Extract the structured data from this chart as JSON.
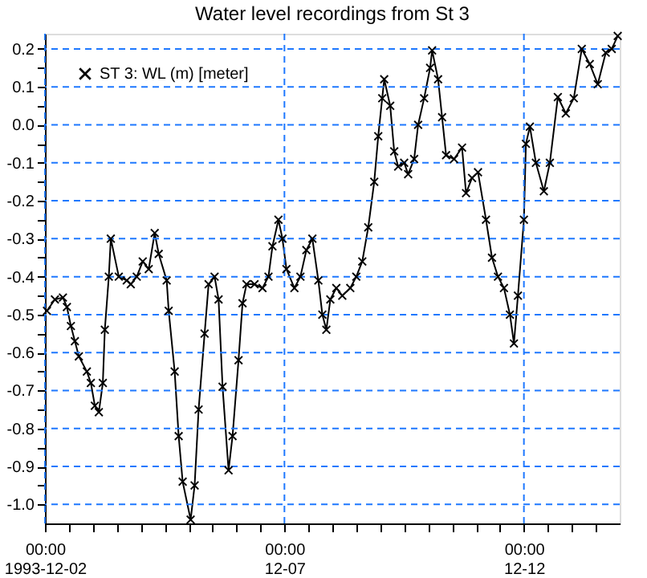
{
  "chart_data": {
    "type": "line",
    "title": "Water level recordings from St 3",
    "x": [
      "1993-12-02T01:00",
      "1993-12-02T05:00",
      "1993-12-02T09:00",
      "1993-12-02T11:00",
      "1993-12-02T13:00",
      "1993-12-02T15:00",
      "1993-12-02T17:00",
      "1993-12-02T21:00",
      "1993-12-02T23:00",
      "1993-12-03T01:00",
      "1993-12-03T03:00",
      "1993-12-03T05:00",
      "1993-12-03T06:00",
      "1993-12-03T08:00",
      "1993-12-03T09:00",
      "1993-12-03T13:00",
      "1993-12-03T17:00",
      "1993-12-03T19:00",
      "1993-12-03T22:00",
      "1993-12-04T01:00",
      "1993-12-04T04:00",
      "1993-12-04T07:00",
      "1993-12-04T09:00",
      "1993-12-04T13:00",
      "1993-12-04T14:00",
      "1993-12-04T17:00",
      "1993-12-04T19:00",
      "1993-12-04T21:00",
      "1993-12-05T01:00",
      "1993-12-05T03:00",
      "1993-12-05T05:00",
      "1993-12-05T08:00",
      "1993-12-05T10:00",
      "1993-12-05T13:00",
      "1993-12-05T15:00",
      "1993-12-05T17:00",
      "1993-12-05T20:00",
      "1993-12-05T22:00",
      "1993-12-06T01:00",
      "1993-12-06T03:00",
      "1993-12-06T05:00",
      "1993-12-06T09:00",
      "1993-12-06T13:00",
      "1993-12-06T16:00",
      "1993-12-06T18:00",
      "1993-12-06T21:00",
      "1993-12-06T23:00",
      "1993-12-07T01:00",
      "1993-12-07T05:00",
      "1993-12-07T08:00",
      "1993-12-07T11:00",
      "1993-12-07T14:00",
      "1993-12-07T17:00",
      "1993-12-07T19:00",
      "1993-12-07T21:00",
      "1993-12-07T23:00",
      "1993-12-08T02:00",
      "1993-12-08T05:00",
      "1993-12-08T09:00",
      "1993-12-08T12:00",
      "1993-12-08T15:00",
      "1993-12-08T18:00",
      "1993-12-08T21:00",
      "1993-12-08T23:00",
      "1993-12-09T01:00",
      "1993-12-09T02:00",
      "1993-12-09T05:00",
      "1993-12-09T07:00",
      "1993-12-09T09:00",
      "1993-12-09T12:00",
      "1993-12-09T14:00",
      "1993-12-09T17:00",
      "1993-12-09T19:00",
      "1993-12-09T22:00",
      "1993-12-10T01:00",
      "1993-12-10T02:00",
      "1993-12-10T05:00",
      "1993-12-10T07:00",
      "1993-12-10T09:00",
      "1993-12-10T13:00",
      "1993-12-10T17:00",
      "1993-12-10T19:00",
      "1993-12-10T22:00",
      "1993-12-11T01:00",
      "1993-12-11T05:00",
      "1993-12-11T08:00",
      "1993-12-11T11:00",
      "1993-12-11T14:00",
      "1993-12-11T17:00",
      "1993-12-11T19:00",
      "1993-12-11T21:00",
      "1993-12-12T00:00",
      "1993-12-12T01:00",
      "1993-12-12T03:00",
      "1993-12-12T06:00",
      "1993-12-12T10:00",
      "1993-12-12T13:00",
      "1993-12-12T17:00",
      "1993-12-12T21:00",
      "1993-12-13T01:00",
      "1993-12-13T05:00",
      "1993-12-13T09:00",
      "1993-12-13T13:00",
      "1993-12-13T17:00",
      "1993-12-13T20:00",
      "1993-12-13T23:00"
    ],
    "series": [
      {
        "name": "ST 3: WL (m) [meter]",
        "color": "#000000",
        "values": [
          -0.49,
          -0.46,
          -0.455,
          -0.48,
          -0.53,
          -0.57,
          -0.61,
          -0.65,
          -0.68,
          -0.74,
          -0.757,
          -0.68,
          -0.54,
          -0.4,
          -0.3,
          -0.4,
          -0.41,
          -0.42,
          -0.4,
          -0.36,
          -0.38,
          -0.285,
          -0.34,
          -0.41,
          -0.49,
          -0.65,
          -0.82,
          -0.94,
          -1.04,
          -0.95,
          -0.75,
          -0.55,
          -0.42,
          -0.4,
          -0.46,
          -0.69,
          -0.91,
          -0.82,
          -0.62,
          -0.47,
          -0.42,
          -0.42,
          -0.43,
          -0.4,
          -0.32,
          -0.25,
          -0.3,
          -0.38,
          -0.43,
          -0.4,
          -0.33,
          -0.3,
          -0.41,
          -0.5,
          -0.54,
          -0.46,
          -0.43,
          -0.45,
          -0.43,
          -0.4,
          -0.36,
          -0.27,
          -0.15,
          -0.03,
          0.07,
          0.12,
          0.05,
          -0.07,
          -0.11,
          -0.1,
          -0.13,
          -0.09,
          0.0,
          0.07,
          0.15,
          0.196,
          0.12,
          0.02,
          -0.08,
          -0.09,
          -0.06,
          -0.18,
          -0.14,
          -0.125,
          -0.25,
          -0.35,
          -0.4,
          -0.43,
          -0.5,
          -0.576,
          -0.45,
          -0.25,
          -0.05,
          -0.005,
          -0.1,
          -0.175,
          -0.1,
          0.073,
          0.03,
          0.07,
          0.2,
          0.16,
          0.107,
          0.19,
          0.2,
          0.234
        ]
      }
    ],
    "xlim": [
      "1993-12-02T00:00",
      "1993-12-14T00:00"
    ],
    "xticks": [
      {
        "value": "1993-12-02T00:00",
        "label": "00:00\n1993-12-02"
      },
      {
        "value": "1993-12-02T12:00",
        "label": null
      },
      {
        "value": "1993-12-03T00:00",
        "label": null
      },
      {
        "value": "1993-12-03T12:00",
        "label": null
      },
      {
        "value": "1993-12-04T00:00",
        "label": null
      },
      {
        "value": "1993-12-04T12:00",
        "label": null
      },
      {
        "value": "1993-12-05T00:00",
        "label": null
      },
      {
        "value": "1993-12-05T12:00",
        "label": null
      },
      {
        "value": "1993-12-06T00:00",
        "label": null
      },
      {
        "value": "1993-12-06T12:00",
        "label": null
      },
      {
        "value": "1993-12-07T00:00",
        "label": "00:00\n12-07"
      },
      {
        "value": "1993-12-07T12:00",
        "label": null
      },
      {
        "value": "1993-12-08T00:00",
        "label": null
      },
      {
        "value": "1993-12-08T12:00",
        "label": null
      },
      {
        "value": "1993-12-09T00:00",
        "label": null
      },
      {
        "value": "1993-12-09T12:00",
        "label": null
      },
      {
        "value": "1993-12-10T00:00",
        "label": null
      },
      {
        "value": "1993-12-10T12:00",
        "label": null
      },
      {
        "value": "1993-12-11T00:00",
        "label": null
      },
      {
        "value": "1993-12-11T12:00",
        "label": null
      },
      {
        "value": "1993-12-12T00:00",
        "label": "00:00\n12-12"
      },
      {
        "value": "1993-12-12T12:00",
        "label": null
      },
      {
        "value": "1993-12-13T00:00",
        "label": null
      },
      {
        "value": "1993-12-13T12:00",
        "label": null
      }
    ],
    "ylim": [
      -1.05,
      0.24
    ],
    "yticks": [
      {
        "value": -1.0,
        "label": "-1.0"
      },
      {
        "value": -0.95,
        "label": null
      },
      {
        "value": -0.9,
        "label": "-0.9"
      },
      {
        "value": -0.85,
        "label": null
      },
      {
        "value": -0.8,
        "label": "-0.8"
      },
      {
        "value": -0.75,
        "label": null
      },
      {
        "value": -0.7,
        "label": "-0.7"
      },
      {
        "value": -0.65,
        "label": null
      },
      {
        "value": -0.6,
        "label": "-0.6"
      },
      {
        "value": -0.55,
        "label": null
      },
      {
        "value": -0.5,
        "label": "-0.5"
      },
      {
        "value": -0.45,
        "label": null
      },
      {
        "value": -0.4,
        "label": "-0.4"
      },
      {
        "value": -0.35,
        "label": null
      },
      {
        "value": -0.3,
        "label": "-0.3"
      },
      {
        "value": -0.25,
        "label": null
      },
      {
        "value": -0.2,
        "label": "-0.2"
      },
      {
        "value": -0.15,
        "label": null
      },
      {
        "value": -0.1,
        "label": "-0.1"
      },
      {
        "value": -0.05,
        "label": null
      },
      {
        "value": 0,
        "label": "0.0"
      },
      {
        "value": 0.05,
        "label": null
      },
      {
        "value": 0.1,
        "label": "0.1"
      },
      {
        "value": 0.15,
        "label": null
      },
      {
        "value": 0.2,
        "label": "0.2"
      }
    ],
    "grid": true,
    "legend": "top left",
    "marker": "cross",
    "line_style": "solid"
  }
}
